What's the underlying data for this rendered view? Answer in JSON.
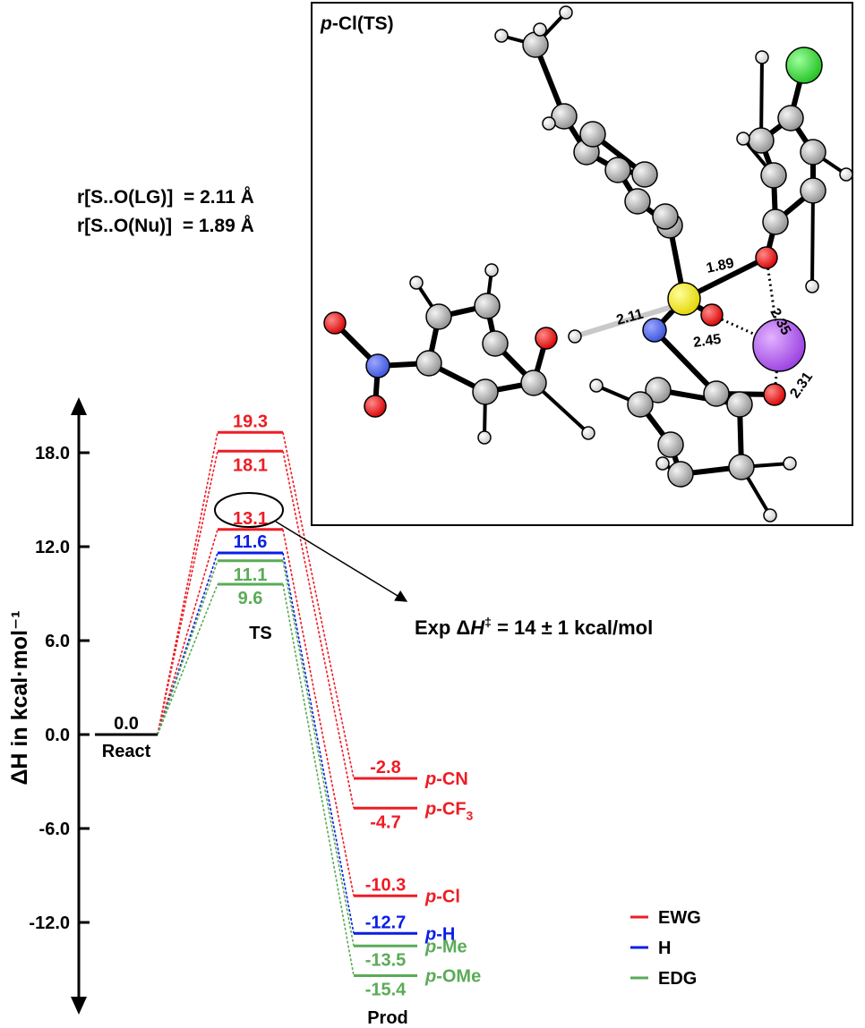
{
  "chart_data": {
    "type": "energy-profile",
    "ylabel": "ΔH in kcal·mol⁻¹",
    "ylim": [
      -18,
      22
    ],
    "yticks": [
      "18.0",
      "12.0",
      "6.0",
      "0.0",
      "-6.0",
      "-12.0"
    ],
    "stages": [
      "React",
      "TS",
      "Prod"
    ],
    "react": {
      "value": 0.0,
      "label": "0.0"
    },
    "ts": [
      {
        "value": 19.3,
        "label": "19.3",
        "group": "EWG",
        "label_pos": "above"
      },
      {
        "value": 18.1,
        "label": "18.1",
        "group": "EWG",
        "label_pos": "below"
      },
      {
        "value": 13.1,
        "label": "13.1",
        "group": "EWG",
        "label_pos": "above"
      },
      {
        "value": 11.6,
        "label": "11.6",
        "group": "H",
        "label_pos": "above"
      },
      {
        "value": 11.1,
        "label": "11.1",
        "group": "EDG",
        "label_pos": "below"
      },
      {
        "value": 9.6,
        "label": "9.6",
        "group": "EDG",
        "label_pos": "below"
      }
    ],
    "prod": [
      {
        "value": -2.8,
        "label": "-2.8",
        "group": "EWG",
        "label_pos": "above",
        "substituent": "p-CN",
        "sub_prefix": "p",
        "sub_base": "-CN",
        "sub_sub": ""
      },
      {
        "value": -4.7,
        "label": "-4.7",
        "group": "EWG",
        "label_pos": "below",
        "substituent": "p-CF3",
        "sub_prefix": "p",
        "sub_base": "-CF",
        "sub_sub": "3"
      },
      {
        "value": -10.3,
        "label": "-10.3",
        "group": "EWG",
        "label_pos": "above",
        "substituent": "p-Cl",
        "sub_prefix": "p",
        "sub_base": "-Cl",
        "sub_sub": ""
      },
      {
        "value": -12.7,
        "label": "-12.7",
        "group": "H",
        "label_pos": "above",
        "substituent": "p-H",
        "sub_prefix": "p",
        "sub_base": "-H",
        "sub_sub": ""
      },
      {
        "value": -13.5,
        "label": "-13.5",
        "group": "EDG",
        "label_pos": "below",
        "substituent": "p-Me",
        "sub_prefix": "p",
        "sub_base": "-Me",
        "sub_sub": ""
      },
      {
        "value": -15.4,
        "label": "-15.4",
        "group": "EDG",
        "label_pos": "below",
        "substituent": "p-OMe",
        "sub_prefix": "p",
        "sub_base": "-OMe",
        "sub_sub": ""
      }
    ],
    "legend": [
      {
        "name": "EWG",
        "color": "#ee1c24"
      },
      {
        "name": "H",
        "color": "#0a1ee6"
      },
      {
        "name": "EDG",
        "color": "#5aab57"
      }
    ],
    "colors": {
      "EWG": "#ee1c24",
      "H": "#0a1ee6",
      "EDG": "#5aab57",
      "axis": "#000000"
    },
    "annotation": {
      "text_prefix": "Exp Δ",
      "text_italic": "H",
      "text_sup": "‡",
      "text_suffix": " = 14 ± 1 kcal/mol",
      "highlighted_value": "13.1"
    },
    "distances": {
      "line1": "r[S..O(LG)]  = 2.11 Å",
      "line2": "r[S..O(Nu)]  = 1.89 Å"
    }
  },
  "inset": {
    "title_italic": "p",
    "title_rest": "-Cl(TS)",
    "bond_labels": [
      "1.89",
      "2.11",
      "2.35",
      "2.45",
      "2.31"
    ]
  }
}
